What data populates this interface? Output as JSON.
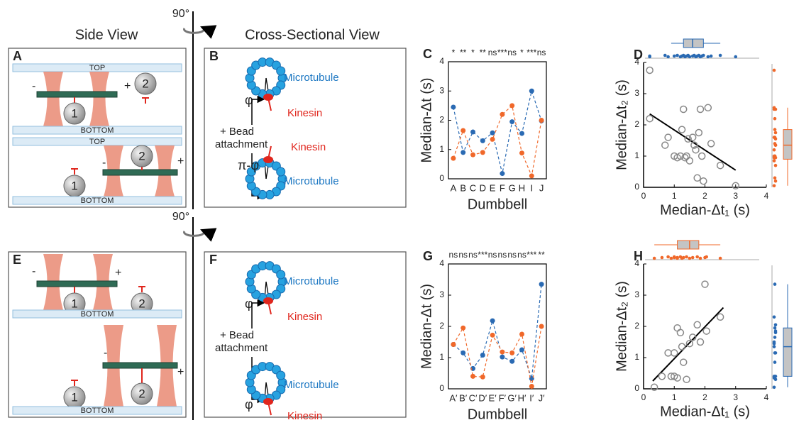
{
  "figure": {
    "side_view": "Side View",
    "cross_view": "Cross-Sectional View",
    "rotations": [
      "90°",
      "90°"
    ],
    "panel_A": {
      "label": "A",
      "walls": [
        "TOP",
        "BOTTOM",
        "TOP",
        "BOTTOM"
      ],
      "ends": [
        "-",
        "+",
        "-",
        "+"
      ],
      "beads": [
        "1",
        "2",
        "2",
        "1"
      ]
    },
    "panel_B": {
      "label": "B",
      "microtubule": [
        "Microtubule",
        "Microtubule"
      ],
      "kinesin": [
        "Kinesin",
        "Kinesin"
      ],
      "angles": [
        "φ",
        "π-φ"
      ],
      "attachment": [
        "+ Bead",
        "attachment"
      ]
    },
    "panel_E": {
      "label": "E",
      "walls": [
        "BOTTOM",
        "BOTTOM"
      ],
      "ends": [
        "-",
        "+",
        "-",
        "+"
      ],
      "beads": [
        "1",
        "2",
        "1",
        "2"
      ]
    },
    "panel_F": {
      "label": "F",
      "microtubule": [
        "Microtubule",
        "Microtubule"
      ],
      "kinesin": [
        "Kinesin",
        "Kinesin"
      ],
      "angles": [
        "φ",
        "φ"
      ],
      "attachment": [
        "+ Bead",
        "attachment"
      ]
    }
  },
  "chart_data": [
    {
      "type": "line",
      "label": "C",
      "categories": [
        "A",
        "B",
        "C",
        "D",
        "E",
        "F",
        "G",
        "H",
        "I",
        "J"
      ],
      "annotations": [
        "*",
        "**",
        "*",
        "**",
        "ns",
        "***",
        "ns",
        "*",
        "***",
        "ns"
      ],
      "xlabel": "Dumbbell",
      "ylabel": "Median-Δt (s)",
      "ylim": [
        0,
        4
      ],
      "yticks": [
        0,
        1,
        2,
        3,
        4
      ],
      "series": [
        {
          "color": "#2a6ab3",
          "values": [
            2.45,
            0.9,
            1.6,
            1.3,
            1.57,
            0.18,
            1.95,
            1.55,
            3.0,
            1.98
          ]
        },
        {
          "color": "#f0682a",
          "values": [
            0.7,
            1.65,
            0.82,
            0.9,
            1.35,
            2.2,
            2.5,
            0.88,
            0.1,
            2.0
          ]
        }
      ]
    },
    {
      "type": "scatter",
      "label": "D",
      "color": "#888888",
      "x": [
        0.2,
        0.2,
        0.7,
        0.8,
        1.0,
        1.1,
        1.2,
        1.25,
        1.3,
        1.35,
        1.4,
        1.45,
        1.5,
        1.6,
        1.65,
        1.7,
        1.75,
        1.8,
        1.85,
        1.9,
        1.95,
        2.1,
        2.2,
        2.5,
        3.0
      ],
      "values": [
        3.75,
        2.2,
        1.35,
        1.6,
        1.0,
        0.95,
        1.0,
        1.85,
        2.5,
        0.95,
        1.0,
        1.55,
        0.85,
        1.6,
        1.35,
        1.2,
        0.3,
        1.75,
        2.5,
        1.0,
        0.2,
        2.55,
        1.4,
        0.7,
        0.05
      ],
      "xlabel": "Median-Δt₁ (s)",
      "ylabel": "Median-Δt₂ (s)",
      "xlim": [
        0,
        4
      ],
      "ylim": [
        0,
        4
      ],
      "xticks": [
        0,
        1,
        2,
        3,
        4
      ],
      "yticks": [
        0,
        1,
        2,
        3,
        4
      ],
      "fit_line": {
        "color": "#000000",
        "x": [
          0.2,
          3.0
        ],
        "y": [
          2.35,
          0.55
        ]
      },
      "x_box": {
        "color": "#2a6ab3",
        "whisker_low": 0.9,
        "q1": 1.3,
        "median": 1.6,
        "q3": 1.95,
        "whisker_high": 2.5
      },
      "y_box": {
        "color": "#f0682a",
        "whisker_low": 0.05,
        "q1": 0.9,
        "median": 1.35,
        "q3": 1.85,
        "whisker_high": 2.55
      }
    },
    {
      "type": "line",
      "label": "G",
      "categories": [
        "A′",
        "B′",
        "C′",
        "D′",
        "E′",
        "F′",
        "G′",
        "H′",
        "I′",
        "J′"
      ],
      "annotations": [
        "ns",
        "ns",
        "ns",
        "***",
        "ns",
        "ns",
        "ns",
        "ns",
        "***",
        "**"
      ],
      "xlabel": "Dumbbell",
      "ylabel": "Median-Δt (s)",
      "ylim": [
        0,
        4
      ],
      "yticks": [
        0,
        1,
        2,
        3,
        4
      ],
      "series": [
        {
          "color": "#2a6ab3",
          "values": [
            1.42,
            1.15,
            0.65,
            1.08,
            2.18,
            1.02,
            0.88,
            1.25,
            0.33,
            3.35
          ]
        },
        {
          "color": "#f0682a",
          "values": [
            1.42,
            1.95,
            0.4,
            0.38,
            1.72,
            1.18,
            1.15,
            1.75,
            0.08,
            2.0
          ]
        }
      ]
    },
    {
      "type": "scatter",
      "label": "H",
      "color": "#888888",
      "x": [
        0.35,
        0.6,
        0.8,
        0.9,
        1.0,
        1.0,
        1.1,
        1.1,
        1.2,
        1.25,
        1.3,
        1.4,
        1.5,
        1.6,
        1.75,
        1.85,
        2.0,
        2.05,
        2.5
      ],
      "values": [
        0.05,
        0.4,
        1.15,
        0.4,
        1.15,
        0.4,
        0.35,
        1.95,
        1.8,
        1.35,
        0.85,
        0.3,
        1.45,
        1.65,
        2.05,
        1.5,
        3.35,
        1.85,
        2.3
      ],
      "xlabel": "Median-Δt₁ (s)",
      "ylabel": "Median-Δt₂ (s)",
      "xlim": [
        0,
        4
      ],
      "ylim": [
        0,
        4
      ],
      "xticks": [
        0,
        1,
        2,
        3,
        4
      ],
      "yticks": [
        0,
        1,
        2,
        3,
        4
      ],
      "fit_line": {
        "color": "#000000",
        "x": [
          0.3,
          2.6
        ],
        "y": [
          0.25,
          2.6
        ]
      },
      "x_box": {
        "color": "#f0682a",
        "whisker_low": 0.35,
        "q1": 1.1,
        "median": 1.5,
        "q3": 1.8,
        "whisker_high": 2.5
      },
      "y_box": {
        "color": "#2a6ab3",
        "whisker_low": 0.05,
        "q1": 0.4,
        "median": 1.35,
        "q3": 1.95,
        "whisker_high": 3.35
      }
    }
  ]
}
